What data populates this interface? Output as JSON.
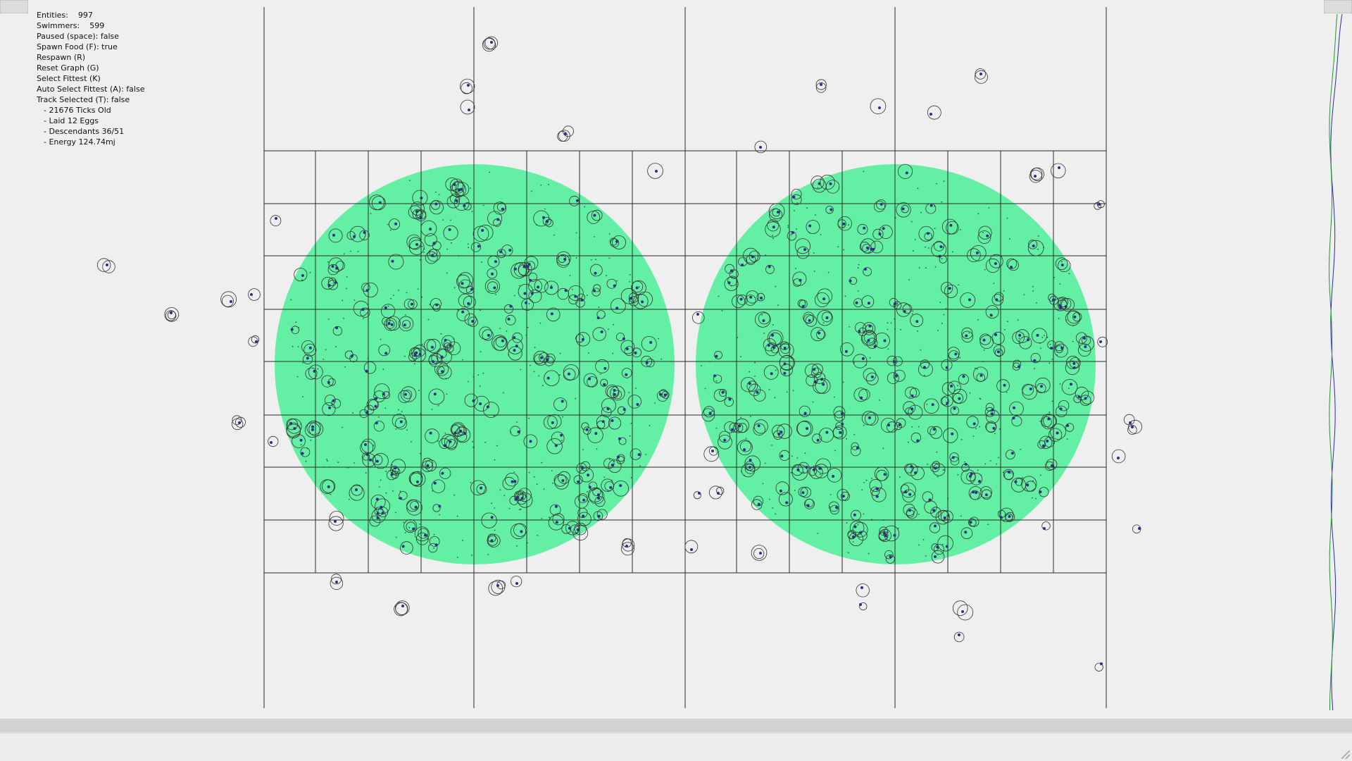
{
  "hud": {
    "entities_label": "Entities:",
    "entities_value": "997",
    "swimmers_label": "Swimmers:",
    "swimmers_value": "599",
    "paused": "Paused (space): false",
    "spawn_food": "Spawn Food (F): true",
    "respawn": "Respawn (R)",
    "reset_graph": "Reset Graph (G)",
    "select_fittest": "Select Fittest (K)",
    "auto_select_fittest": "Auto Select Fittest (A): false",
    "track_selected": "Track Selected (T): false",
    "selected_info": [
      "- 21676 Ticks Old",
      "- Laid 12 Eggs",
      "- Descendants 36/51",
      "- Energy 124.74mj"
    ]
  },
  "colors": {
    "background": "#efefef",
    "food_zone": "#64f0a4",
    "grid_line": "#2a2a2a",
    "swimmer_outline": "#333333",
    "swimmer_head": "#2b2f8a",
    "graph_swimmers": "#1a9a2a",
    "graph_entities": "#2a2ab0"
  },
  "icons": {
    "left_corner": "window-tab-icon",
    "right_corner": "window-tab-icon"
  }
}
